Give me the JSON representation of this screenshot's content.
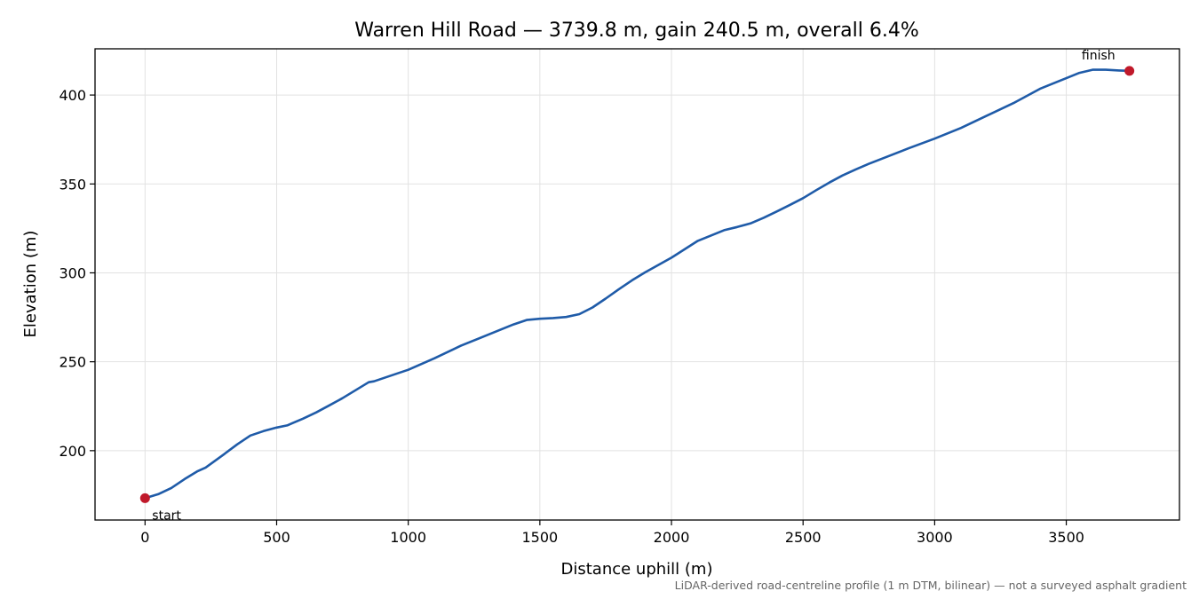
{
  "chart_data": {
    "type": "line",
    "title": "Warren Hill Road — 3739.8 m, gain 240.5 m, overall 6.4%",
    "xlabel": "Distance uphill (m)",
    "ylabel": "Elevation (m)",
    "xlim": [
      -190,
      3930
    ],
    "ylim": [
      161,
      426
    ],
    "xticks": [
      0,
      500,
      1000,
      1500,
      2000,
      2500,
      3000,
      3500
    ],
    "yticks": [
      200,
      250,
      300,
      350,
      400
    ],
    "grid": true,
    "line_color": "#1f5ba8",
    "marker_color": "#c0192a",
    "series": [
      {
        "x": [
          0,
          50,
          100,
          150,
          200,
          230,
          300,
          350,
          400,
          450,
          500,
          540,
          560,
          600,
          650,
          700,
          750,
          800,
          850,
          870,
          900,
          950,
          1000,
          1100,
          1200,
          1300,
          1400,
          1450,
          1500,
          1550,
          1600,
          1650,
          1700,
          1750,
          1800,
          1850,
          1900,
          2000,
          2100,
          2150,
          2200,
          2250,
          2300,
          2350,
          2400,
          2450,
          2500,
          2550,
          2600,
          2650,
          2700,
          2750,
          2800,
          2900,
          3000,
          3100,
          3200,
          3300,
          3400,
          3450,
          3500,
          3550,
          3600,
          3650,
          3700,
          3739.8
        ],
        "y": [
          173.3,
          175.5,
          179,
          184,
          188.5,
          190.5,
          198,
          203.5,
          208.5,
          211,
          213,
          214.2,
          215.5,
          218,
          221.5,
          225.5,
          229.5,
          234,
          238.5,
          239,
          240.5,
          243,
          245.5,
          252,
          259,
          265,
          271,
          273.5,
          274.2,
          274.6,
          275.2,
          276.8,
          280.5,
          285.5,
          290.8,
          295.8,
          300.3,
          308.5,
          318,
          321,
          324,
          325.8,
          327.8,
          331,
          334.5,
          338.2,
          342,
          346.5,
          350.8,
          354.8,
          358.2,
          361.3,
          364.2,
          370,
          375.5,
          381.5,
          388.5,
          395.5,
          403.5,
          406.5,
          409.5,
          412.5,
          414.2,
          414.2,
          413.8,
          413.6
        ]
      }
    ],
    "annotations": [
      {
        "text": "start",
        "x": 0,
        "y": 173.3
      },
      {
        "text": "finish",
        "x": 3739.8,
        "y": 413.6
      }
    ],
    "footnote": "LiDAR-derived road-centreline profile (1 m DTM, bilinear) — not a surveyed asphalt gradient"
  }
}
